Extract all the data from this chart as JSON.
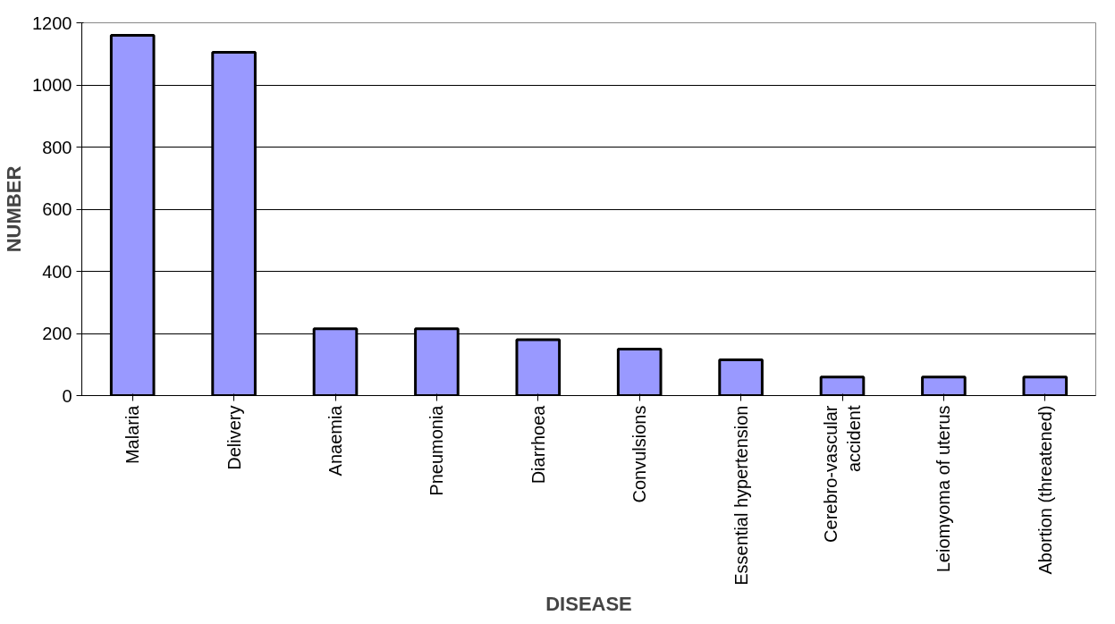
{
  "chart_data": {
    "type": "bar",
    "xlabel": "DISEASE",
    "ylabel": "NUMBER",
    "categories": [
      "Malaria",
      "Delivery",
      "Anaemia",
      "Pneumonia",
      "Diarrhoea",
      "Convulsions",
      "Essential hypertension",
      "Cerebro-vascular\naccident",
      "Leiomyoma of uterus",
      "Abortion (threatened)"
    ],
    "values": [
      1160,
      1105,
      215,
      215,
      180,
      150,
      115,
      60,
      60,
      60
    ],
    "color": "#9999ff",
    "ylim": [
      0,
      1200
    ],
    "yticks": [
      0,
      200,
      400,
      600,
      800,
      1000,
      1200
    ],
    "grid": "y"
  }
}
